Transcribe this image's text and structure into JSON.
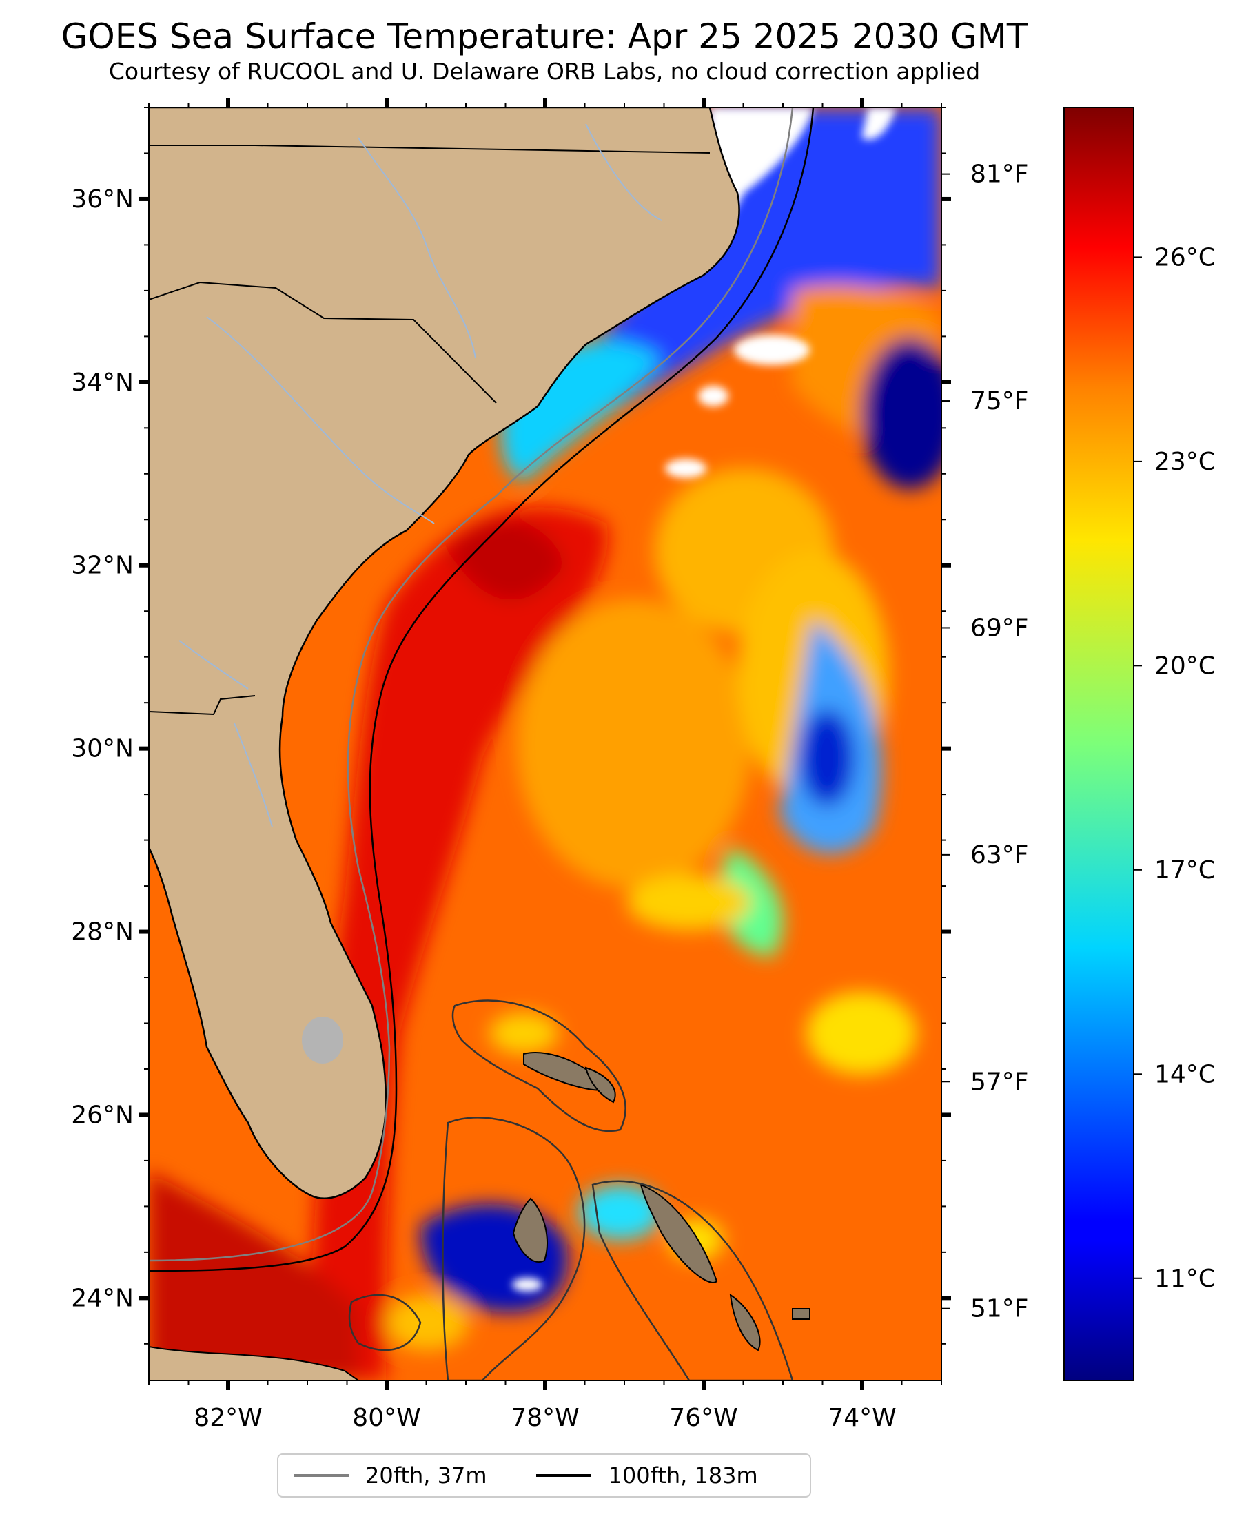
{
  "title": "GOES Sea Surface Temperature: Apr 25 2025 2030 GMT",
  "subtitle": "Courtesy of RUCOOL and U. Delaware ORB Labs, no cloud correction applied",
  "map": {
    "lat_labels": [
      "36°N",
      "34°N",
      "32°N",
      "30°N",
      "28°N",
      "26°N",
      "24°N"
    ],
    "lon_labels": [
      "82°W",
      "80°W",
      "78°W",
      "76°W",
      "74°W"
    ],
    "extent": {
      "lon_min": -83.0,
      "lon_max": -73.0,
      "lat_min": 23.1,
      "lat_max": 37.0
    },
    "land_color": "#d2b48c",
    "no_data_color": "#ffffff"
  },
  "colorbar": {
    "colormap": "jet",
    "celsius_range": [
      9.5,
      28.2
    ],
    "celsius_labels": [
      "26°C",
      "23°C",
      "20°C",
      "17°C",
      "14°C",
      "11°C"
    ],
    "fahrenheit_labels": [
      "81°F",
      "75°F",
      "69°F",
      "63°F",
      "57°F",
      "51°F"
    ]
  },
  "legend": {
    "items": [
      {
        "label": "20fth, 37m",
        "color": "#808080"
      },
      {
        "label": "100fth, 183m",
        "color": "#000000"
      }
    ]
  }
}
